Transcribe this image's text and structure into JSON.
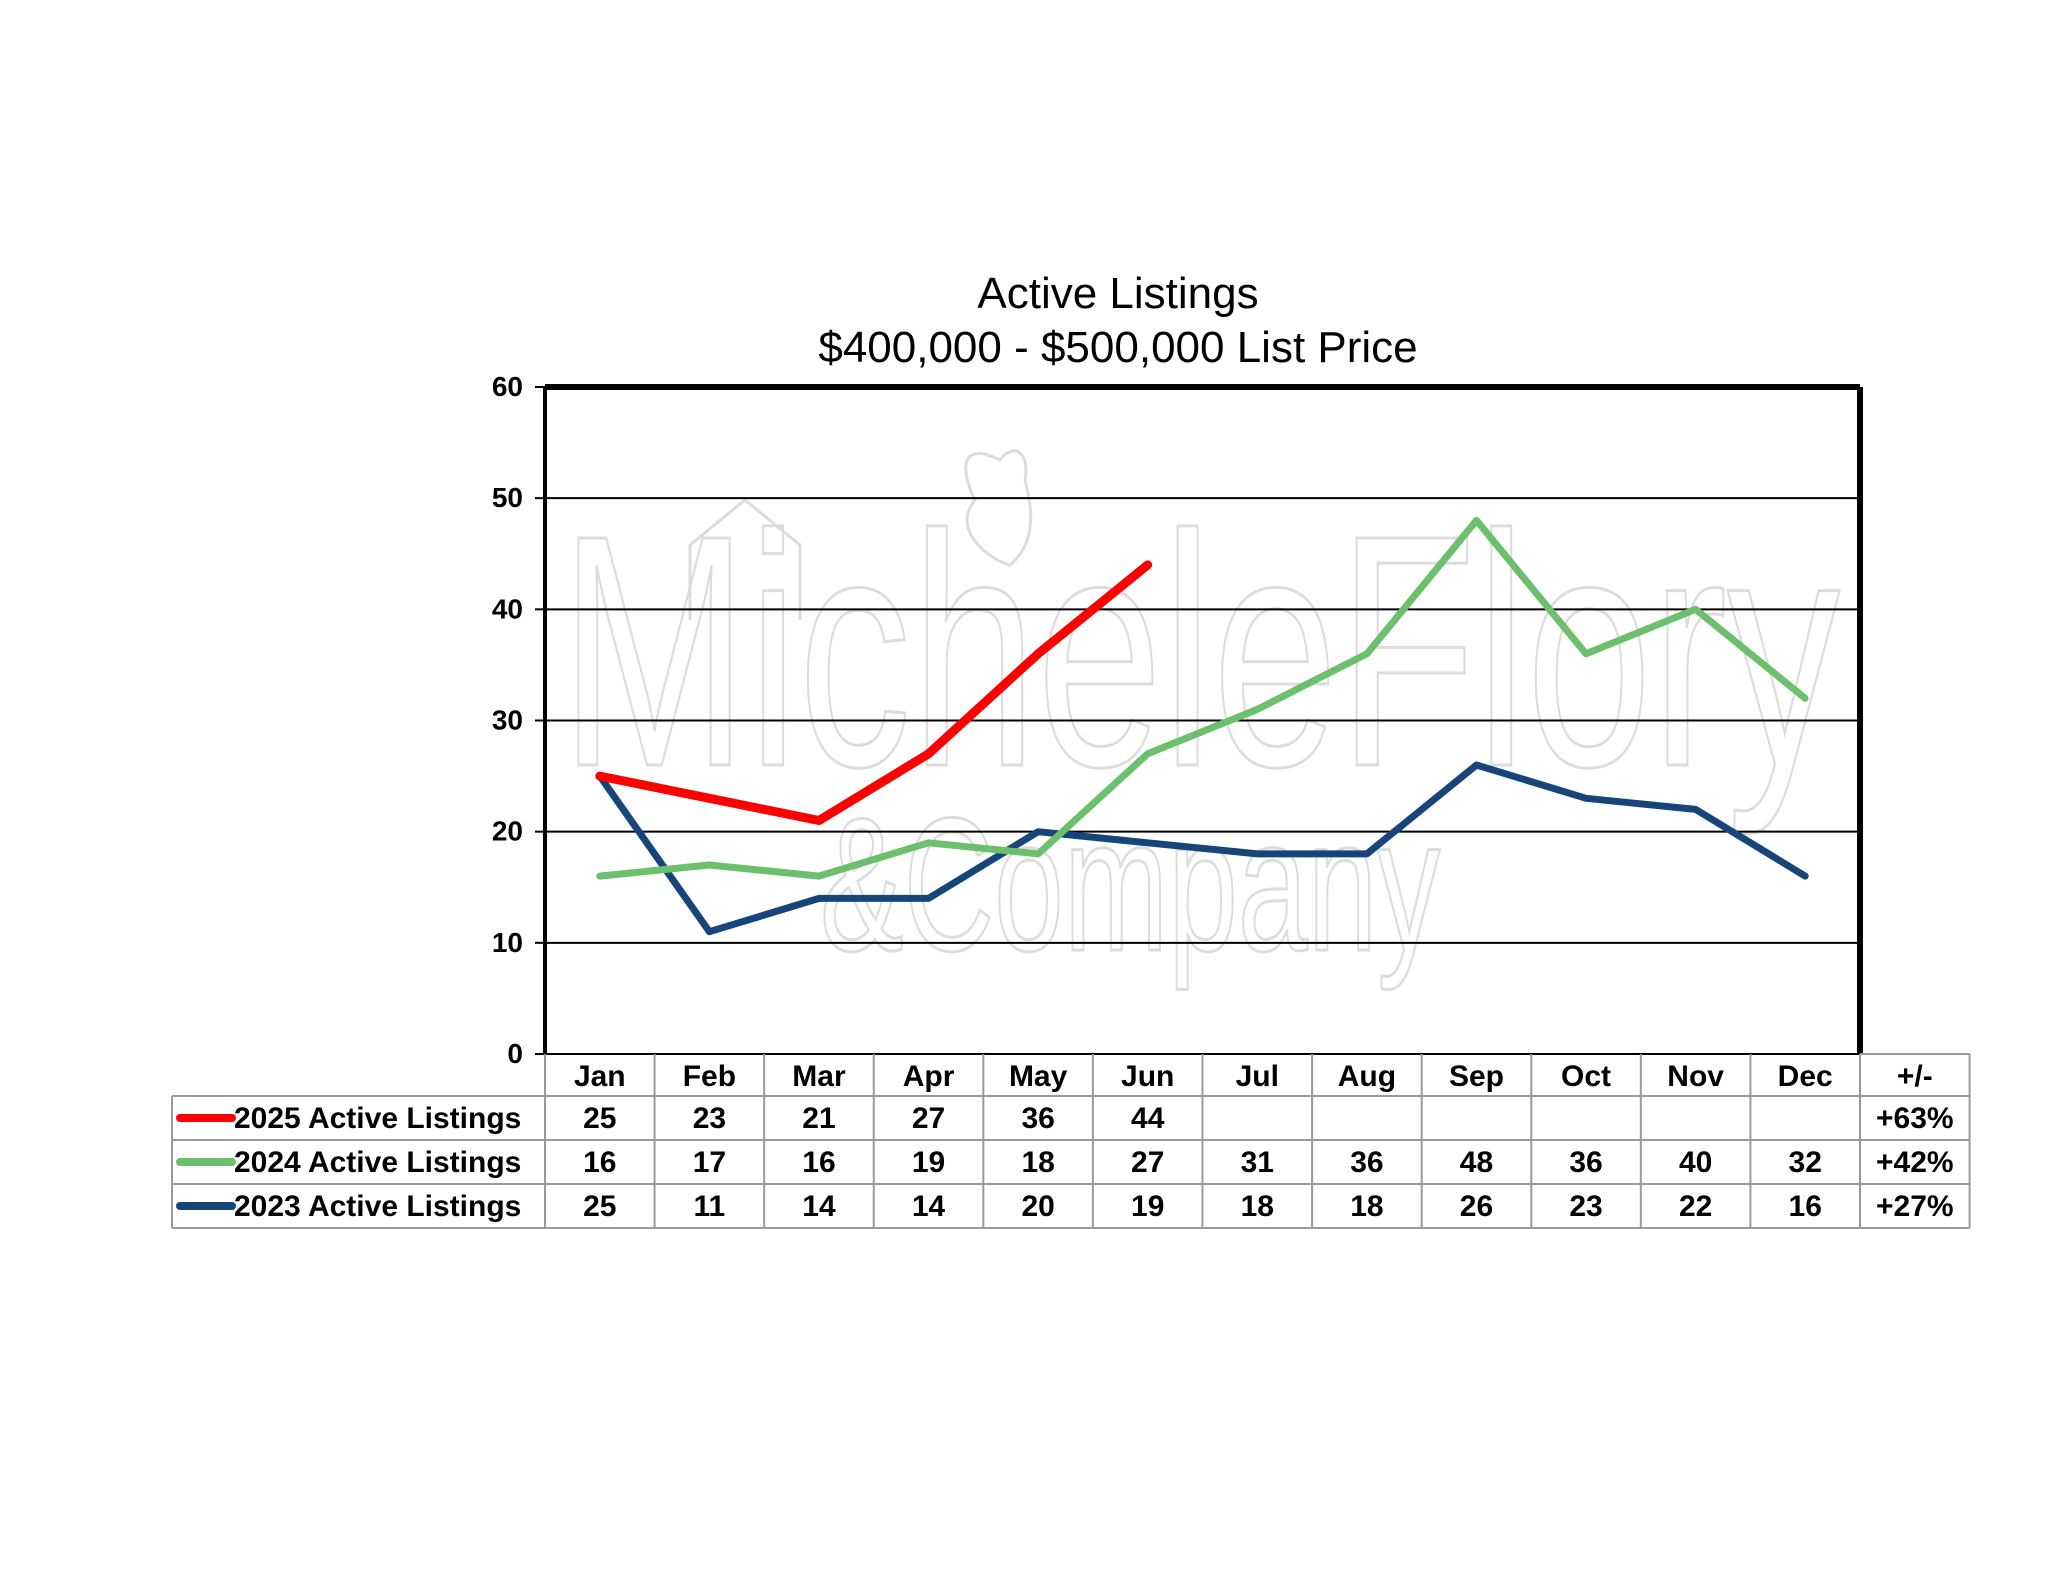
{
  "chart_data": {
    "type": "line",
    "title": "Active Listings",
    "subtitle": "$400,000 - $500,000 List Price",
    "categories": [
      "Jan",
      "Feb",
      "Mar",
      "Apr",
      "May",
      "Jun",
      "Jul",
      "Aug",
      "Sep",
      "Oct",
      "Nov",
      "Dec"
    ],
    "change_header": "+/-",
    "ylim": [
      0,
      60
    ],
    "yticks": [
      0,
      10,
      20,
      30,
      40,
      50,
      60
    ],
    "grid": true,
    "legend": "table-below",
    "watermark": "Michele Flory & Company",
    "series": [
      {
        "name": "2025 Active Listings",
        "color": "#ff0000",
        "values": [
          25,
          23,
          21,
          27,
          36,
          44,
          null,
          null,
          null,
          null,
          null,
          null
        ],
        "change": "+63%"
      },
      {
        "name": "2024 Active Listings",
        "color": "#6cbf6c",
        "values": [
          16,
          17,
          16,
          19,
          18,
          27,
          31,
          36,
          48,
          36,
          40,
          32
        ],
        "change": "+42%"
      },
      {
        "name": "2023 Active Listings",
        "color": "#17457a",
        "values": [
          25,
          11,
          14,
          14,
          20,
          19,
          18,
          18,
          26,
          23,
          22,
          16
        ],
        "change": "+27%"
      }
    ]
  }
}
